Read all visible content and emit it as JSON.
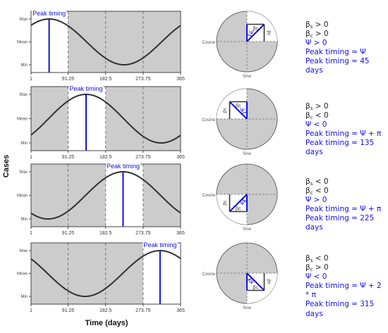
{
  "figure": {
    "y_axis_title": "Cases",
    "x_axis_title": "Time (days)",
    "y_tick_labels": [
      "Max",
      "Mean",
      "Min"
    ],
    "x_tick_labels": [
      "1",
      "91.25",
      "182.5",
      "273.75",
      "365"
    ],
    "peak_label": "Peak timing",
    "circle_labels": {
      "cosine": "Cosine",
      "sine": "Sine",
      "psi": "Ψ",
      "beta_c": "βc",
      "beta_s": "βs"
    },
    "colors": {
      "shade": "#cccccc",
      "curve": "#303030",
      "peak": "#1010dd",
      "info_text": "#1010ee"
    }
  },
  "chart_data": [
    {
      "type": "line",
      "title": "",
      "xlabel": "",
      "ylabel": "",
      "xlim": [
        1,
        365
      ],
      "x_ticks": [
        1,
        91.25,
        182.5,
        273.75,
        365
      ],
      "y_ticks": [
        "Min",
        "Mean",
        "Max"
      ],
      "series": [
        {
          "peak_day": 45
        }
      ],
      "white_band": [
        1,
        91.25
      ],
      "annotation": "Peak timing"
    },
    {
      "type": "line",
      "title": "",
      "xlabel": "",
      "ylabel": "",
      "xlim": [
        1,
        365
      ],
      "x_ticks": [
        1,
        91.25,
        182.5,
        273.75,
        365
      ],
      "y_ticks": [
        "Min",
        "Mean",
        "Max"
      ],
      "series": [
        {
          "peak_day": 135
        }
      ],
      "white_band": [
        91.25,
        182.5
      ],
      "annotation": "Peak timing"
    },
    {
      "type": "line",
      "title": "",
      "xlabel": "",
      "ylabel": "",
      "xlim": [
        1,
        365
      ],
      "x_ticks": [
        1,
        91.25,
        182.5,
        273.75,
        365
      ],
      "y_ticks": [
        "Min",
        "Mean",
        "Max"
      ],
      "series": [
        {
          "peak_day": 225
        }
      ],
      "white_band": [
        182.5,
        273.75
      ],
      "annotation": "Peak timing"
    },
    {
      "type": "line",
      "title": "",
      "xlabel": "",
      "ylabel": "",
      "xlim": [
        1,
        365
      ],
      "x_ticks": [
        1,
        91.25,
        182.5,
        273.75,
        365
      ],
      "y_ticks": [
        "Min",
        "Mean",
        "Max"
      ],
      "series": [
        {
          "peak_day": 315
        }
      ],
      "white_band": [
        273.75,
        365
      ],
      "annotation": "Peak timing"
    }
  ],
  "panels": [
    {
      "quadrant": 1,
      "bs": "> 0",
      "bc": "> 0",
      "psi": "> 0",
      "formula": "Peak timing = Ψ",
      "result": "Peak timing = 45 days"
    },
    {
      "quadrant": 2,
      "bs": "> 0",
      "bc": "< 0",
      "psi": "< 0",
      "formula": "Peak timing = Ψ + π",
      "result": "Peak timing = 135 days"
    },
    {
      "quadrant": 3,
      "bs": "< 0",
      "bc": "< 0",
      "psi": "> 0",
      "formula": "Peak timing = Ψ + π",
      "result": "Peak timing = 225 days"
    },
    {
      "quadrant": 4,
      "bs": "< 0",
      "bc": "> 0",
      "psi": "< 0",
      "formula": "Peak timing = Ψ + 2 * π",
      "result": "Peak timing = 315 days"
    }
  ]
}
